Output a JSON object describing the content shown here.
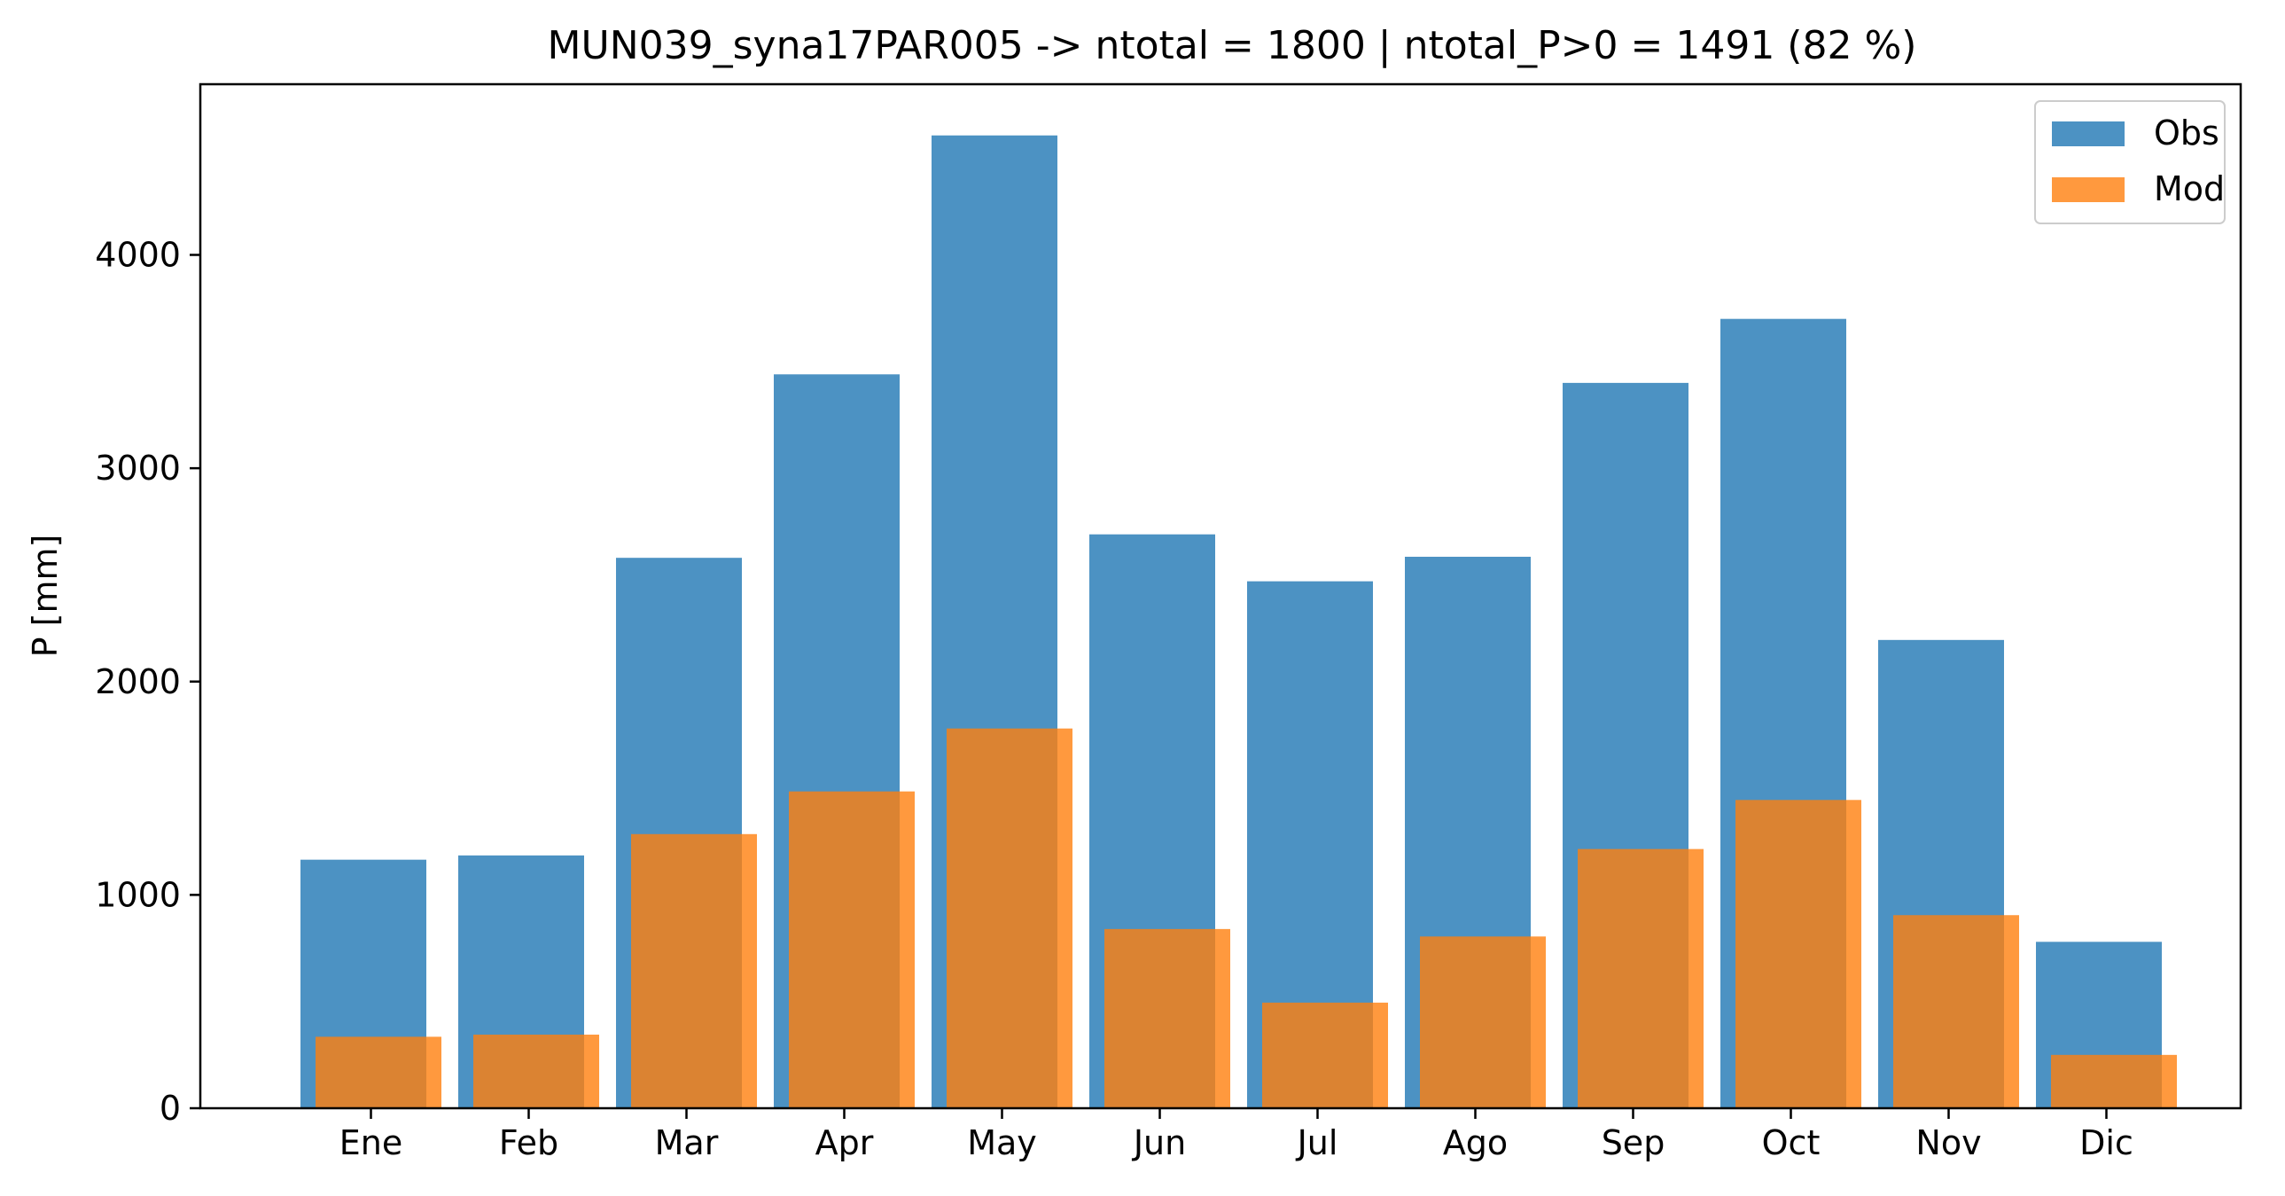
{
  "chart_data": {
    "type": "bar",
    "title": "MUN039_syna17PAR005 -> ntotal = 1800 | ntotal_P>0 = 1491 (82 %)",
    "xlabel": "",
    "ylabel": "P [mm]",
    "categories": [
      "Ene",
      "Feb",
      "Mar",
      "Apr",
      "May",
      "Jun",
      "Jul",
      "Ago",
      "Sep",
      "Oct",
      "Nov",
      "Dic"
    ],
    "series": [
      {
        "name": "Obs",
        "color": "#1f77b4",
        "values": [
          1165,
          1185,
          2580,
          3440,
          4560,
          2690,
          2470,
          2585,
          3400,
          3700,
          2195,
          780
        ]
      },
      {
        "name": "Mod",
        "color": "#ff7f0e",
        "values": [
          335,
          345,
          1285,
          1485,
          1780,
          840,
          495,
          805,
          1215,
          1445,
          905,
          250
        ]
      }
    ],
    "yticks": [
      0,
      1000,
      2000,
      3000,
      4000
    ],
    "ylim": [
      0,
      4800
    ],
    "grid": false,
    "legend": "upper right"
  }
}
